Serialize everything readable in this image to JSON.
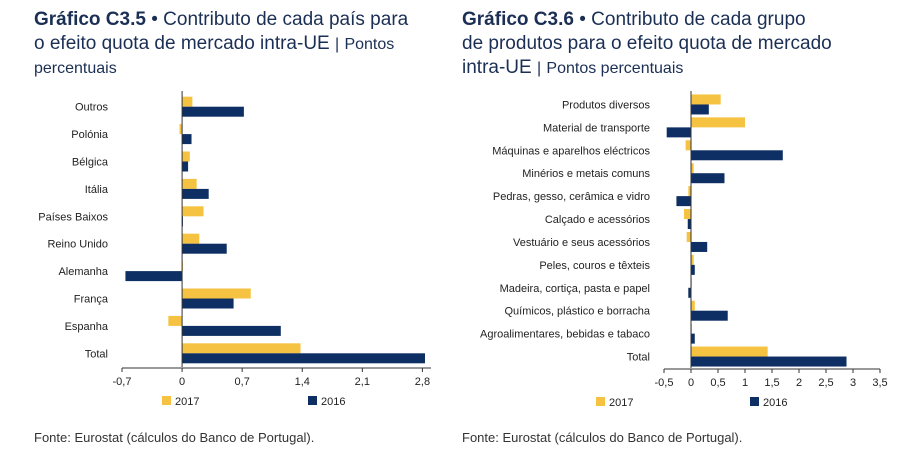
{
  "charts": {
    "left": {
      "title_bold": "Gráfico C3.5",
      "bullet": "•",
      "title_rest_line1": "Contributo de cada país para",
      "title_line2_main": "o efeito quota de mercado intra-UE",
      "title_line2_sep": "|",
      "title_line2_sub": "Pontos",
      "title_line3": "percentuais",
      "source": "Fonte: Eurostat (cálculos do Banco de Portugal)."
    },
    "right": {
      "title_bold": "Gráfico C3.6",
      "bullet": "•",
      "title_rest_line1": "Contributo de cada grupo",
      "title_line2": "de produtos para o efeito quota de mercado",
      "title_line3_main": "intra-UE",
      "title_line3_sep": "|",
      "title_line3_sub": "Pontos percentuais",
      "source": "Fonte: Eurostat (cálculos do Banco de Portugal)."
    }
  },
  "colors": {
    "s2017": "#f5c242",
    "s2016": "#0e2f63",
    "axis": "#333333"
  },
  "chart_data": [
    {
      "type": "bar",
      "orientation": "horizontal",
      "title": "Contributo de cada país para o efeito quota de mercado intra-UE",
      "unit": "Pontos percentuais",
      "categories": [
        "Outros",
        "Polónia",
        "Bélgica",
        "Itália",
        "Países Baixos",
        "Reino Unido",
        "Alemanha",
        "França",
        "Espanha",
        "Total"
      ],
      "series": [
        {
          "name": "2017",
          "values": [
            0.12,
            -0.03,
            0.09,
            0.17,
            0.25,
            0.2,
            0.0,
            0.8,
            -0.16,
            1.38
          ]
        },
        {
          "name": "2016",
          "values": [
            0.72,
            0.11,
            0.07,
            0.31,
            0.01,
            0.52,
            -0.66,
            0.6,
            1.15,
            2.83
          ]
        }
      ],
      "xlim": [
        -0.7,
        2.9
      ],
      "ticks": [
        -0.7,
        0,
        0.7,
        1.4,
        2.1,
        2.8
      ],
      "tick_labels": [
        "-0,7",
        "0",
        "0,7",
        "1,4",
        "2,1",
        "2,8"
      ],
      "legend": [
        "2017",
        "2016"
      ]
    },
    {
      "type": "bar",
      "orientation": "horizontal",
      "title": "Contributo de cada grupo de produtos para o efeito quota de mercado intra-UE",
      "unit": "Pontos percentuais",
      "categories": [
        "Produtos diversos",
        "Material de transporte",
        "Máquinas e aparelhos eléctricos",
        "Minérios e metais comuns",
        "Pedras, gesso, cerâmica e vidro",
        "Calçado e acessórios",
        "Vestuário e seus acessórios",
        "Peles, couros e têxteis",
        "Madeira, cortiça, pasta e papel",
        "Químicos, plástico e borracha",
        "Agroalimentares, bebidas e tabaco",
        "Total"
      ],
      "series": [
        {
          "name": "2017",
          "values": [
            0.55,
            1.0,
            -0.1,
            0.05,
            -0.05,
            -0.13,
            -0.08,
            0.05,
            0.0,
            0.07,
            0.0,
            1.42
          ]
        },
        {
          "name": "2016",
          "values": [
            0.33,
            -0.45,
            1.7,
            0.62,
            -0.27,
            -0.06,
            0.3,
            0.07,
            -0.05,
            0.68,
            0.07,
            2.88
          ]
        }
      ],
      "xlim": [
        -0.5,
        3.5
      ],
      "ticks": [
        -0.5,
        0,
        0.5,
        1,
        1.5,
        2,
        2.5,
        3,
        3.5
      ],
      "tick_labels": [
        "-0,5",
        "0",
        "0,5",
        "1",
        "1,5",
        "2",
        "2,5",
        "3",
        "3,5"
      ],
      "legend": [
        "2017",
        "2016"
      ]
    }
  ]
}
